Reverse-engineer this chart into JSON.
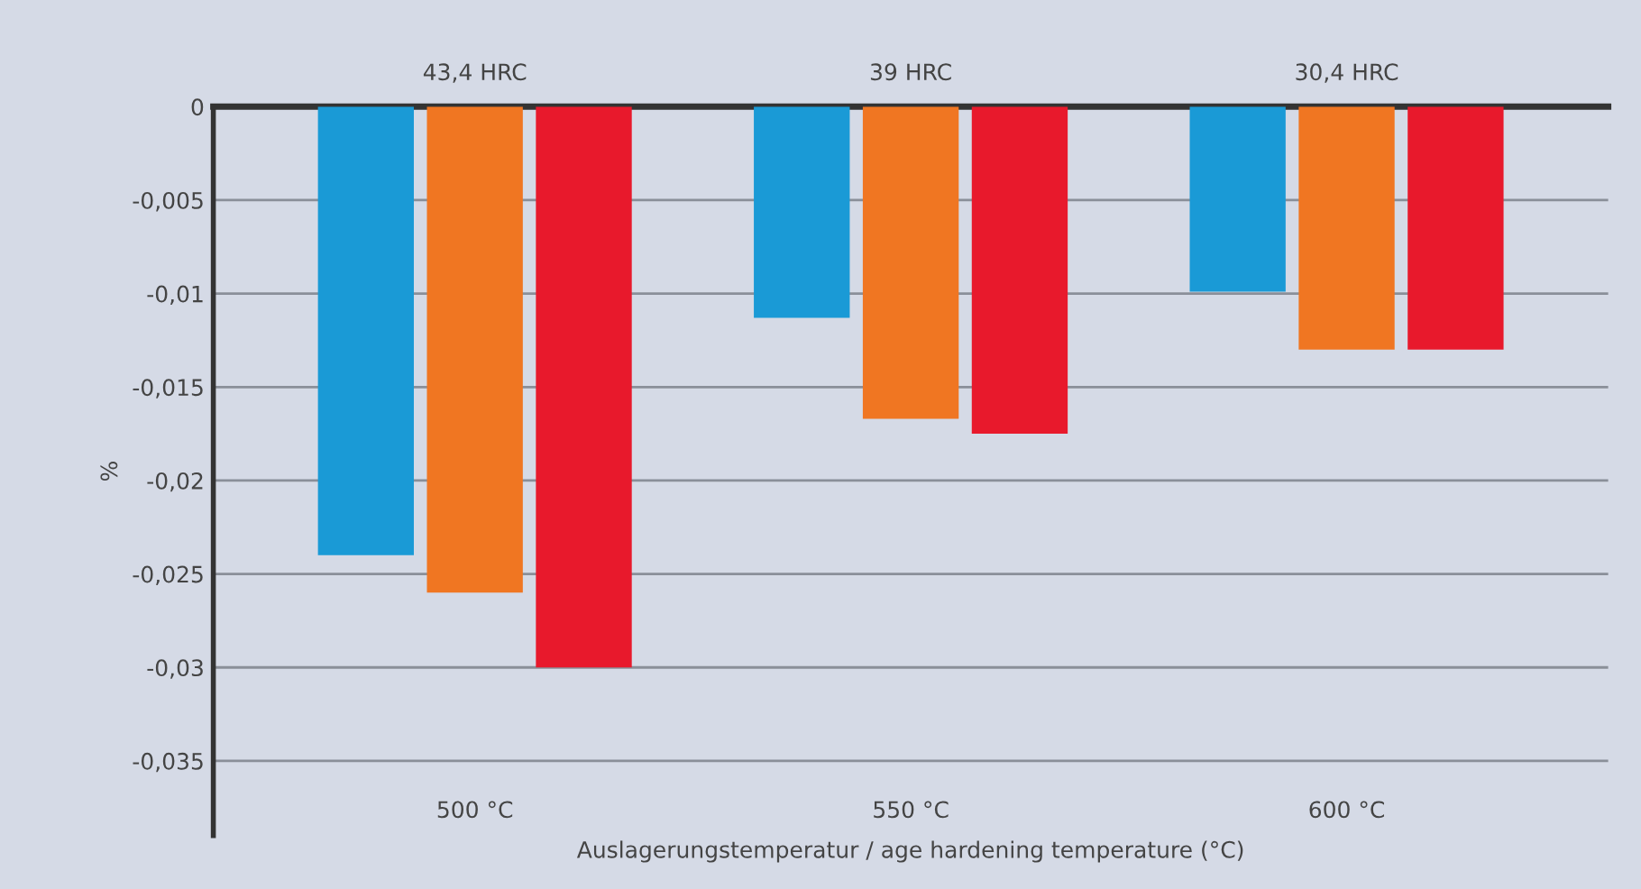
{
  "chart_data": {
    "type": "bar",
    "categories": [
      "500 °C",
      "550 °C",
      "600 °C"
    ],
    "series": [
      {
        "color": "#1a9ad6",
        "values": [
          -0.024,
          -0.0113,
          -0.0099
        ]
      },
      {
        "color": "#f07622",
        "values": [
          -0.026,
          -0.0167,
          -0.013
        ]
      },
      {
        "color": "#e8192c",
        "values": [
          -0.03,
          -0.0175,
          -0.013
        ]
      }
    ],
    "xlabel": "Auslagerungstemperatur / age hardening temperature (°C)",
    "ylabel": "%",
    "annotations": [
      "43,4 HRC",
      "39 HRC",
      "30,4 HRC"
    ],
    "ylim": [
      -0.039,
      0
    ],
    "yticks": [
      0,
      {
        "value": -0.005,
        "label": "-0,005"
      },
      {
        "value": -0.01,
        "label": "-0,01"
      },
      {
        "value": -0.015,
        "label": "-0,015"
      },
      {
        "value": -0.02,
        "label": "-0,02"
      },
      {
        "value": -0.025,
        "label": "-0,025"
      },
      {
        "value": -0.03,
        "label": "-0,03"
      },
      {
        "value": -0.035,
        "label": "-0,035"
      }
    ],
    "grid": "y",
    "legend": false
  }
}
